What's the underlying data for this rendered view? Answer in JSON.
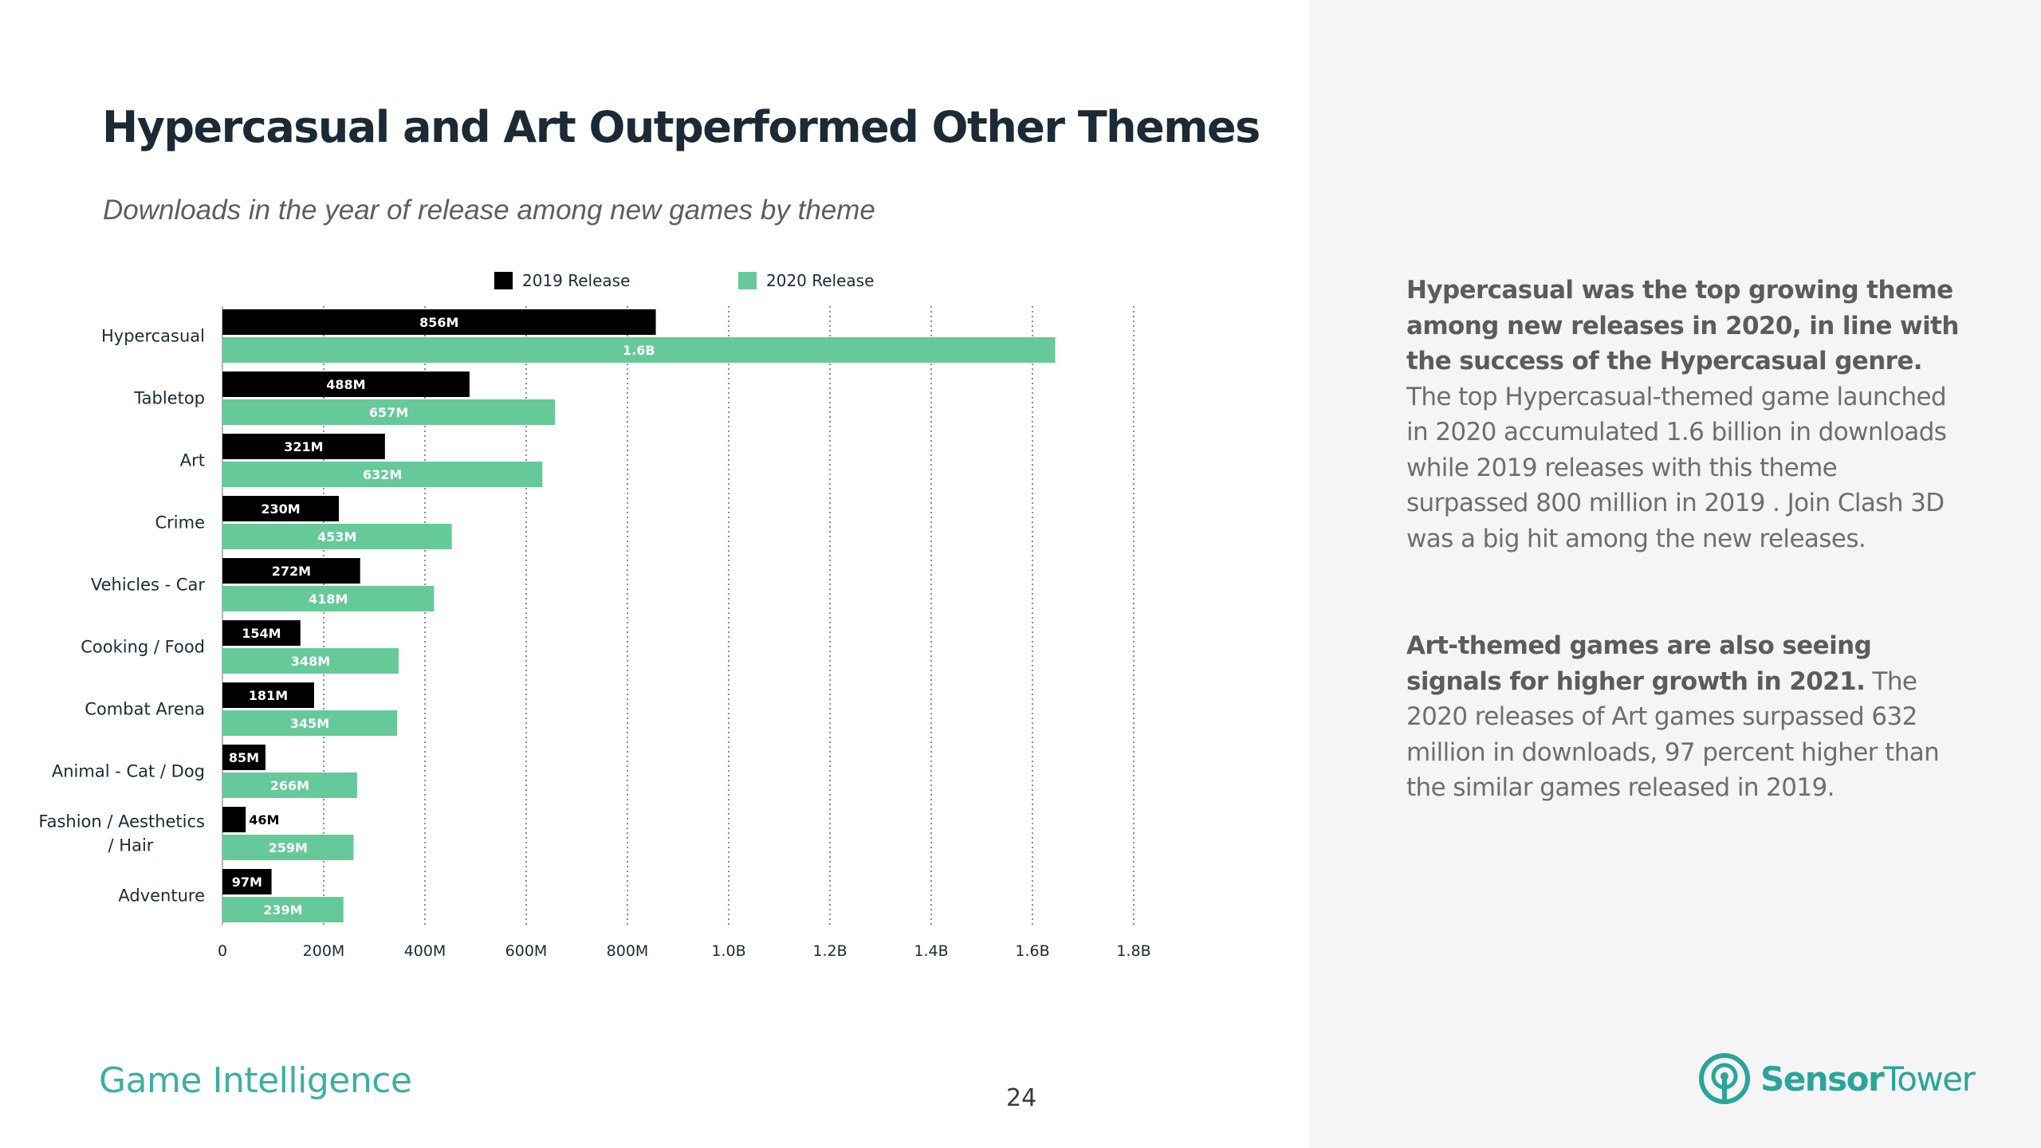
{
  "slide": {
    "title": "Hypercasual and Art Outperformed Other Themes",
    "subtitle": "Downloads in the year of release among new games by theme",
    "footer_label": "Game Intelligence",
    "page_number": "24"
  },
  "sidebar": {
    "paragraph1": {
      "bold": "Hypercasual was the top growing theme among new releases in 2020, in line with the success of the Hypercasual genre.",
      "text": " The top Hypercasual-themed game launched in 2020 accumulated 1.6 billion in downloads while 2019 releases with this theme surpassed 800 million in 2019 . Join Clash 3D was a big hit among the new releases."
    },
    "paragraph2": {
      "bold": "Art-themed games are also seeing signals for higher growth in 2021.",
      "text": " The 2020 releases of Art games surpassed 632 million in downloads, 97 percent higher than the similar games released in 2019."
    }
  },
  "logo": {
    "part1": "Sensor",
    "part2": "Tower",
    "icon": "sensor-tower-logo-icon"
  },
  "colors": {
    "series_2019": "#000000",
    "series_2020": "#66c999",
    "title": "#1b2a35",
    "accent": "#3bb0a3",
    "sidebar_bg": "#f5f5f5"
  },
  "chart_data": {
    "type": "bar",
    "orientation": "horizontal",
    "categories": [
      "Hypercasual",
      "Tabletop",
      "Art",
      "Crime",
      "Vehicles - Car",
      "Cooking / Food",
      "Combat Arena",
      "Animal - Cat / Dog",
      "Fashion / Aesthetics / Hair",
      "Adventure"
    ],
    "series": [
      {
        "name": "2019 Release",
        "color": "#000000",
        "values": [
          856000000,
          488000000,
          321000000,
          230000000,
          272000000,
          154000000,
          181000000,
          85000000,
          46000000,
          97000000
        ],
        "labels": [
          "856M",
          "488M",
          "321M",
          "230M",
          "272M",
          "154M",
          "181M",
          "85M",
          "46M",
          "97M"
        ]
      },
      {
        "name": "2020 Release",
        "color": "#66c999",
        "values": [
          1645000000,
          657000000,
          632000000,
          453000000,
          418000000,
          348000000,
          345000000,
          266000000,
          259000000,
          239000000
        ],
        "labels": [
          "1.6B",
          "657M",
          "632M",
          "453M",
          "418M",
          "348M",
          "345M",
          "266M",
          "259M",
          "239M"
        ]
      }
    ],
    "x_ticks": [
      0,
      200000000,
      400000000,
      600000000,
      800000000,
      1000000000,
      1200000000,
      1400000000,
      1600000000,
      1800000000
    ],
    "x_tick_labels": [
      "0",
      "200M",
      "400M",
      "600M",
      "800M",
      "1.0B",
      "1.2B",
      "1.4B",
      "1.6B",
      "1.8B"
    ],
    "xlim": [
      0,
      1800000000
    ],
    "grid": "vertical dotted",
    "legend_position": "top"
  }
}
